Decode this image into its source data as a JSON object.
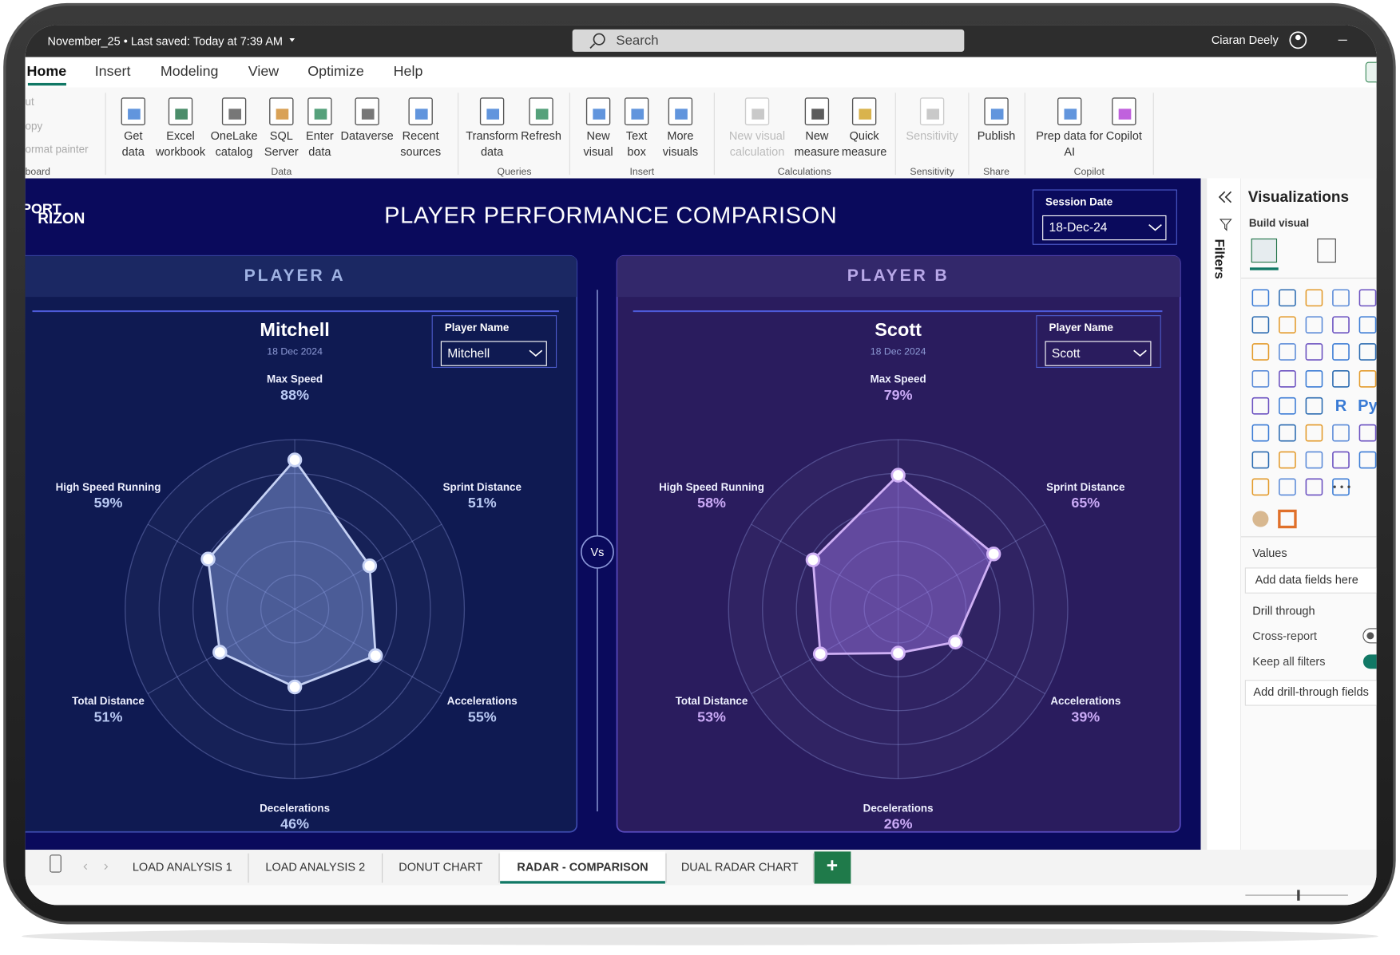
{
  "titlebar": {
    "file": "November_25 • Last saved: Today at 7:39 AM",
    "search": "Search",
    "user": "Ciaran Deely"
  },
  "ribbon": {
    "tabs": [
      "Home",
      "Insert",
      "Modeling",
      "View",
      "Optimize",
      "Help"
    ],
    "clipboard": {
      "items": [
        "ut",
        "opy",
        "ormat painter"
      ],
      "group": "board"
    },
    "groups": [
      {
        "name": "Data",
        "buttons": [
          {
            "lines": [
              "Get",
              "data"
            ]
          },
          {
            "lines": [
              "Excel",
              "workbook"
            ]
          },
          {
            "lines": [
              "OneLake",
              "catalog"
            ]
          },
          {
            "lines": [
              "SQL",
              "Server"
            ]
          },
          {
            "lines": [
              "Enter",
              "data"
            ]
          },
          {
            "lines": [
              "Dataverse"
            ]
          },
          {
            "lines": [
              "Recent",
              "sources"
            ]
          }
        ]
      },
      {
        "name": "Queries",
        "buttons": [
          {
            "lines": [
              "Transform",
              "data"
            ]
          },
          {
            "lines": [
              "Refresh"
            ]
          }
        ]
      },
      {
        "name": "Insert",
        "buttons": [
          {
            "lines": [
              "New",
              "visual"
            ]
          },
          {
            "lines": [
              "Text",
              "box"
            ]
          },
          {
            "lines": [
              "More",
              "visuals"
            ]
          }
        ]
      },
      {
        "name": "Calculations",
        "buttons": [
          {
            "lines": [
              "New visual",
              "calculation"
            ]
          },
          {
            "lines": [
              "New",
              "measure"
            ]
          },
          {
            "lines": [
              "Quick",
              "measure"
            ]
          }
        ]
      },
      {
        "name": "Sensitivity",
        "buttons": [
          {
            "lines": [
              "Sensitivity"
            ]
          }
        ]
      },
      {
        "name": "Share",
        "buttons": [
          {
            "lines": [
              "Publish"
            ]
          }
        ]
      },
      {
        "name": "Copilot",
        "buttons": [
          {
            "lines": [
              "Prep data for",
              "AI"
            ]
          },
          {
            "lines": [
              "Copilot"
            ]
          }
        ]
      }
    ]
  },
  "report": {
    "logo": [
      "PORT",
      "RIZON"
    ],
    "title": "PLAYER PERFORMANCE COMPARISON",
    "session": {
      "label": "Session Date",
      "value": "18-Dec-24"
    },
    "vs": "Vs",
    "players": [
      {
        "header": "PLAYER A",
        "name": "Mitchell",
        "date": "18 Dec 2024",
        "slicer_label": "Player Name",
        "slicer_value": "Mitchell",
        "radar": {
          "labels": [
            "Max Speed",
            "Sprint Distance",
            "Accelerations",
            "Decelerations",
            "Total Distance",
            "High Speed Running"
          ],
          "values": [
            88,
            51,
            55,
            46,
            51,
            59
          ],
          "value_labels": [
            "88%",
            "51%",
            "55%",
            "46%",
            "51%",
            "59%"
          ],
          "rlim": [
            0,
            100
          ],
          "rticks": [
            20,
            40,
            60,
            80,
            100
          ]
        }
      },
      {
        "header": "PLAYER B",
        "name": "Scott",
        "date": "18 Dec 2024",
        "slicer_label": "Player Name",
        "slicer_value": "Scott",
        "radar": {
          "labels": [
            "Max Speed",
            "Sprint Distance",
            "Accelerations",
            "Decelerations",
            "Total Distance",
            "High Speed Running"
          ],
          "values": [
            79,
            65,
            39,
            26,
            53,
            58
          ],
          "value_labels": [
            "79%",
            "65%",
            "39%",
            "26%",
            "53%",
            "58%"
          ],
          "rlim": [
            0,
            100
          ],
          "rticks": [
            20,
            40,
            60,
            80,
            100
          ]
        }
      }
    ]
  },
  "pane": {
    "filters": "Filters",
    "title": "Visualizations",
    "build": "Build visual",
    "icon_texts": [
      "R",
      "Py"
    ],
    "values": "Values",
    "values_hint": "Add data fields here",
    "drill": "Drill through",
    "cross": "Cross-report",
    "keep": "Keep all filters",
    "drill_hint": "Add drill-through fields"
  },
  "page_tabs": {
    "tabs": [
      "LOAD ANALYSIS 1",
      "LOAD ANALYSIS 2",
      "DONUT CHART",
      "RADAR - COMPARISON",
      "DUAL RADAR CHART"
    ],
    "add": "+"
  }
}
